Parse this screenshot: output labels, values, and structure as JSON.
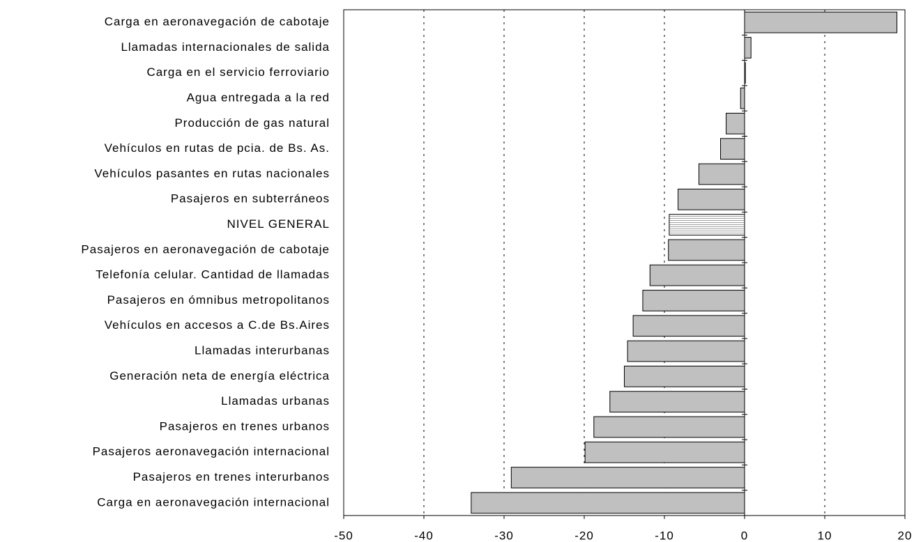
{
  "chart_data": {
    "type": "bar",
    "orientation": "horizontal",
    "categories": [
      "Carga en aeronavegación de cabotaje",
      "Llamadas internacionales de salida",
      "Carga en el servicio ferroviario",
      "Agua entregada a la red",
      "Producción de gas natural",
      "Vehículos en rutas de pcia. de Bs. As.",
      "Vehículos pasantes en rutas nacionales",
      "Pasajeros en subterráneos",
      "NIVEL GENERAL",
      "Pasajeros en aeronavegación de cabotaje",
      "Telefonía celular. Cantidad de llamadas",
      "Pasajeros en ómnibus metropolitanos",
      "Vehículos en accesos a C.de Bs.Aires",
      "Llamadas interurbanas",
      "Generación neta de energía eléctrica",
      "Llamadas urbanas",
      "Pasajeros en trenes urbanos",
      "Pasajeros aeronavegación internacional",
      "Pasajeros en trenes interurbanos",
      "Carga en aeronavegación internacional"
    ],
    "values": [
      19.0,
      0.8,
      0.1,
      -0.5,
      -2.3,
      -3.0,
      -5.7,
      -8.3,
      -9.4,
      -9.5,
      -11.8,
      -12.7,
      -13.9,
      -14.6,
      -15.0,
      -16.8,
      -18.8,
      -19.9,
      -29.1,
      -34.1
    ],
    "color": "#c0c0c0",
    "hatched_categories": [
      8
    ],
    "xlim": [
      -50,
      20
    ],
    "xticks": [
      -50,
      -40,
      -30,
      -20,
      -10,
      0,
      10,
      20
    ],
    "grid": true
  }
}
